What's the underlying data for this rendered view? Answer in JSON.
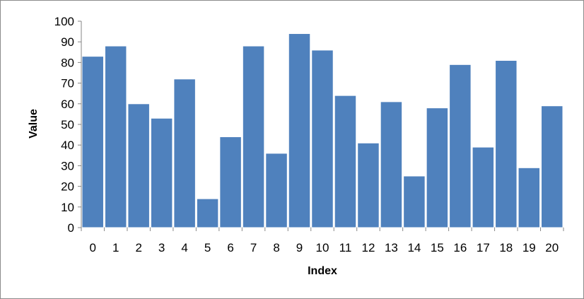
{
  "chart_data": {
    "type": "bar",
    "title": "",
    "xlabel": "Index",
    "ylabel": "Value",
    "categories": [
      "0",
      "1",
      "2",
      "3",
      "4",
      "5",
      "6",
      "7",
      "8",
      "9",
      "10",
      "11",
      "12",
      "13",
      "14",
      "15",
      "16",
      "17",
      "18",
      "19",
      "20"
    ],
    "values": [
      83,
      88,
      60,
      53,
      72,
      14,
      44,
      88,
      36,
      94,
      86,
      64,
      41,
      61,
      25,
      58,
      79,
      39,
      81,
      29,
      59
    ],
    "ylim": [
      0,
      100
    ],
    "yticks": [
      0,
      10,
      20,
      30,
      40,
      50,
      60,
      70,
      80,
      90,
      100
    ],
    "grid": false,
    "legend": "none",
    "bar_color": "#4f81bd",
    "bar_edge_color": "#ffffff"
  }
}
